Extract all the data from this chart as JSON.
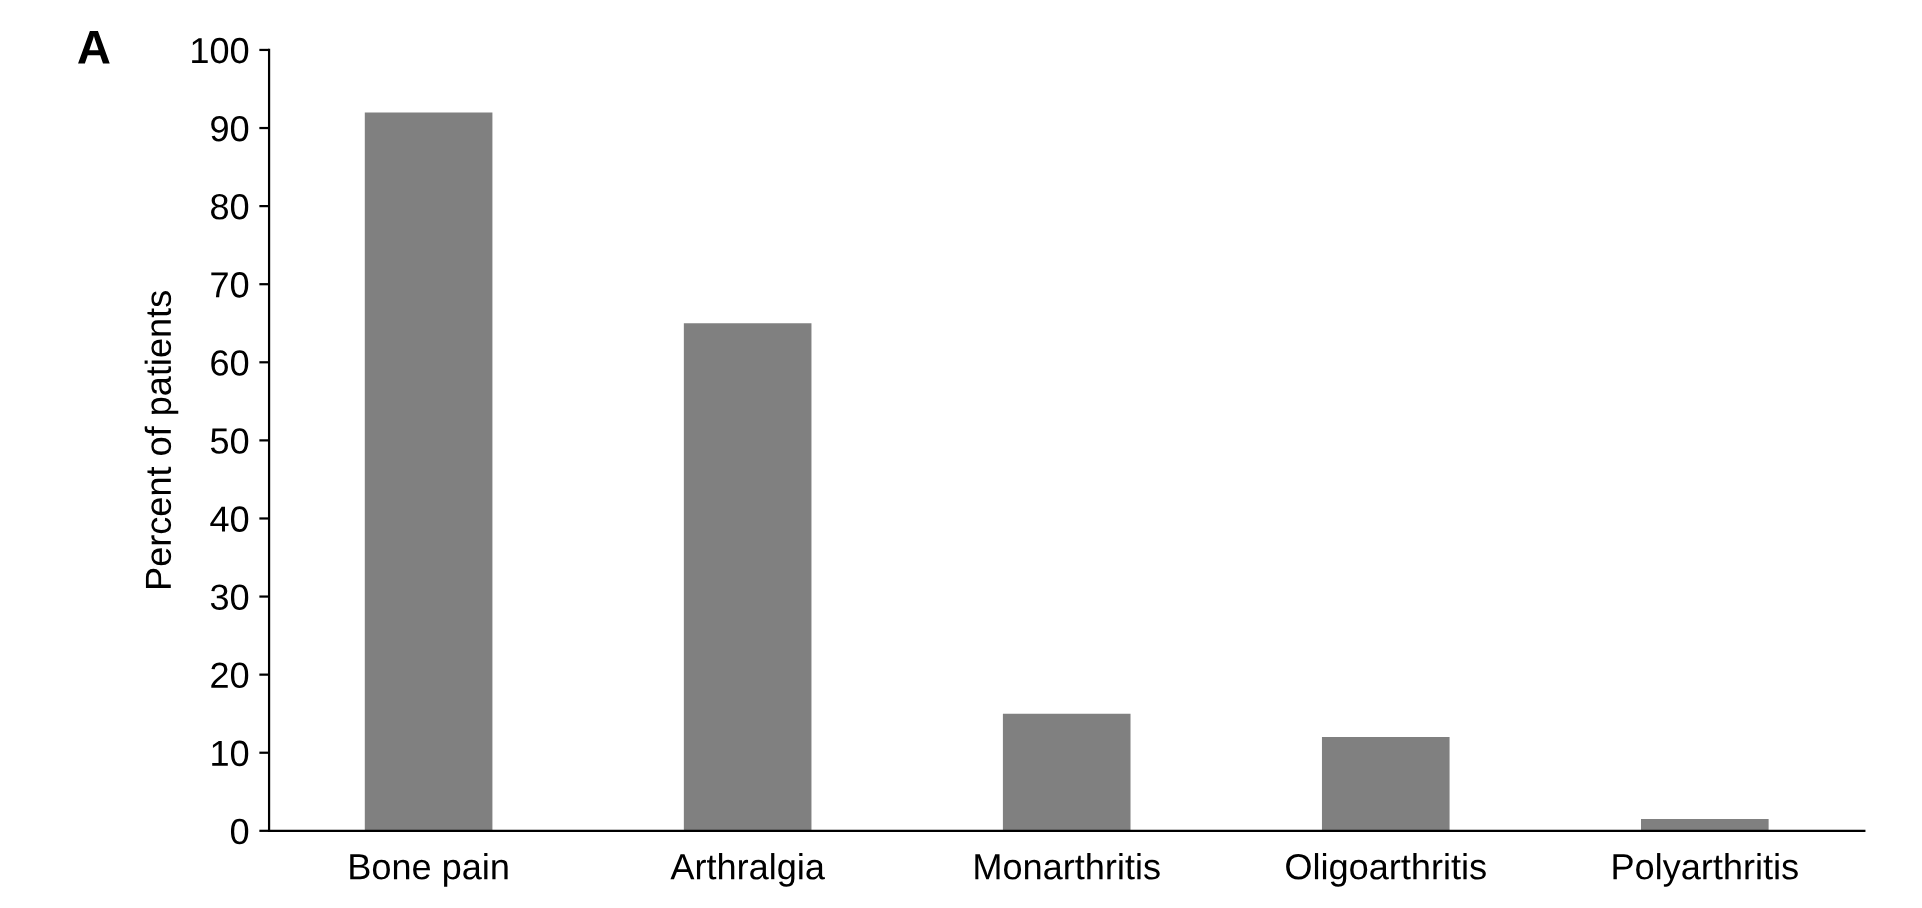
{
  "chart_data": {
    "type": "bar",
    "ylabel": "Percent of patients",
    "annotations": [
      "A"
    ],
    "categories": [
      "Bone pain",
      "Arthralgia",
      "Monarthritis",
      "Oligoarthritis",
      "Polyarthritis"
    ],
    "values": [
      92,
      65,
      15,
      12,
      1.5
    ],
    "color": "#808080",
    "ylim": [
      0,
      100
    ],
    "yticks": [
      0,
      10,
      20,
      30,
      40,
      50,
      60,
      70,
      80,
      90,
      100
    ],
    "grid": false,
    "legend": false
  }
}
